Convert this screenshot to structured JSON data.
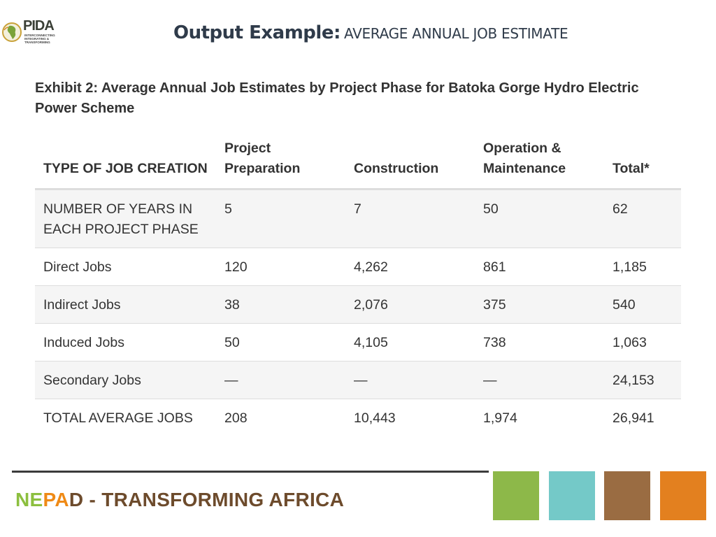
{
  "logo": {
    "wordmark": "PIDA",
    "subtitle_line1": "INTERCONNECTING",
    "subtitle_line2": "INTEGRATING & TRANSFORMING"
  },
  "header": {
    "title_strong": "Output Example:",
    "title_rest": "AVERAGE ANNUAL JOB ESTIMATE"
  },
  "exhibit": {
    "caption": "Exhibit 2: Average Annual Job Estimates by Project Phase for Batoka Gorge Hydro Electric Power Scheme",
    "columns": [
      "TYPE OF JOB CREATION",
      "Project Preparation",
      "Construction",
      "Operation & Maintenance",
      "Total*"
    ],
    "rows": [
      [
        "NUMBER OF YEARS IN EACH PROJECT PHASE",
        "5",
        "7",
        "50",
        "62"
      ],
      [
        "Direct Jobs",
        "120",
        "4,262",
        "861",
        "1,185"
      ],
      [
        "Indirect Jobs",
        "38",
        "2,076",
        "375",
        "540"
      ],
      [
        "Induced Jobs",
        "50",
        "4,105",
        "738",
        "1,063"
      ],
      [
        "Secondary Jobs",
        "—",
        "—",
        "—",
        "24,153"
      ],
      [
        "TOTAL AVERAGE JOBS",
        "208",
        "10,443",
        "1,974",
        "26,941"
      ]
    ]
  },
  "footer": {
    "brand_n": "NE",
    "brand_pa": "PA",
    "brand_d": "D",
    "tagline": " - TRANSFORMING AFRICA",
    "square_colors": [
      "#8db849",
      "#74c9c8",
      "#9a6c42",
      "#e3801f"
    ]
  }
}
